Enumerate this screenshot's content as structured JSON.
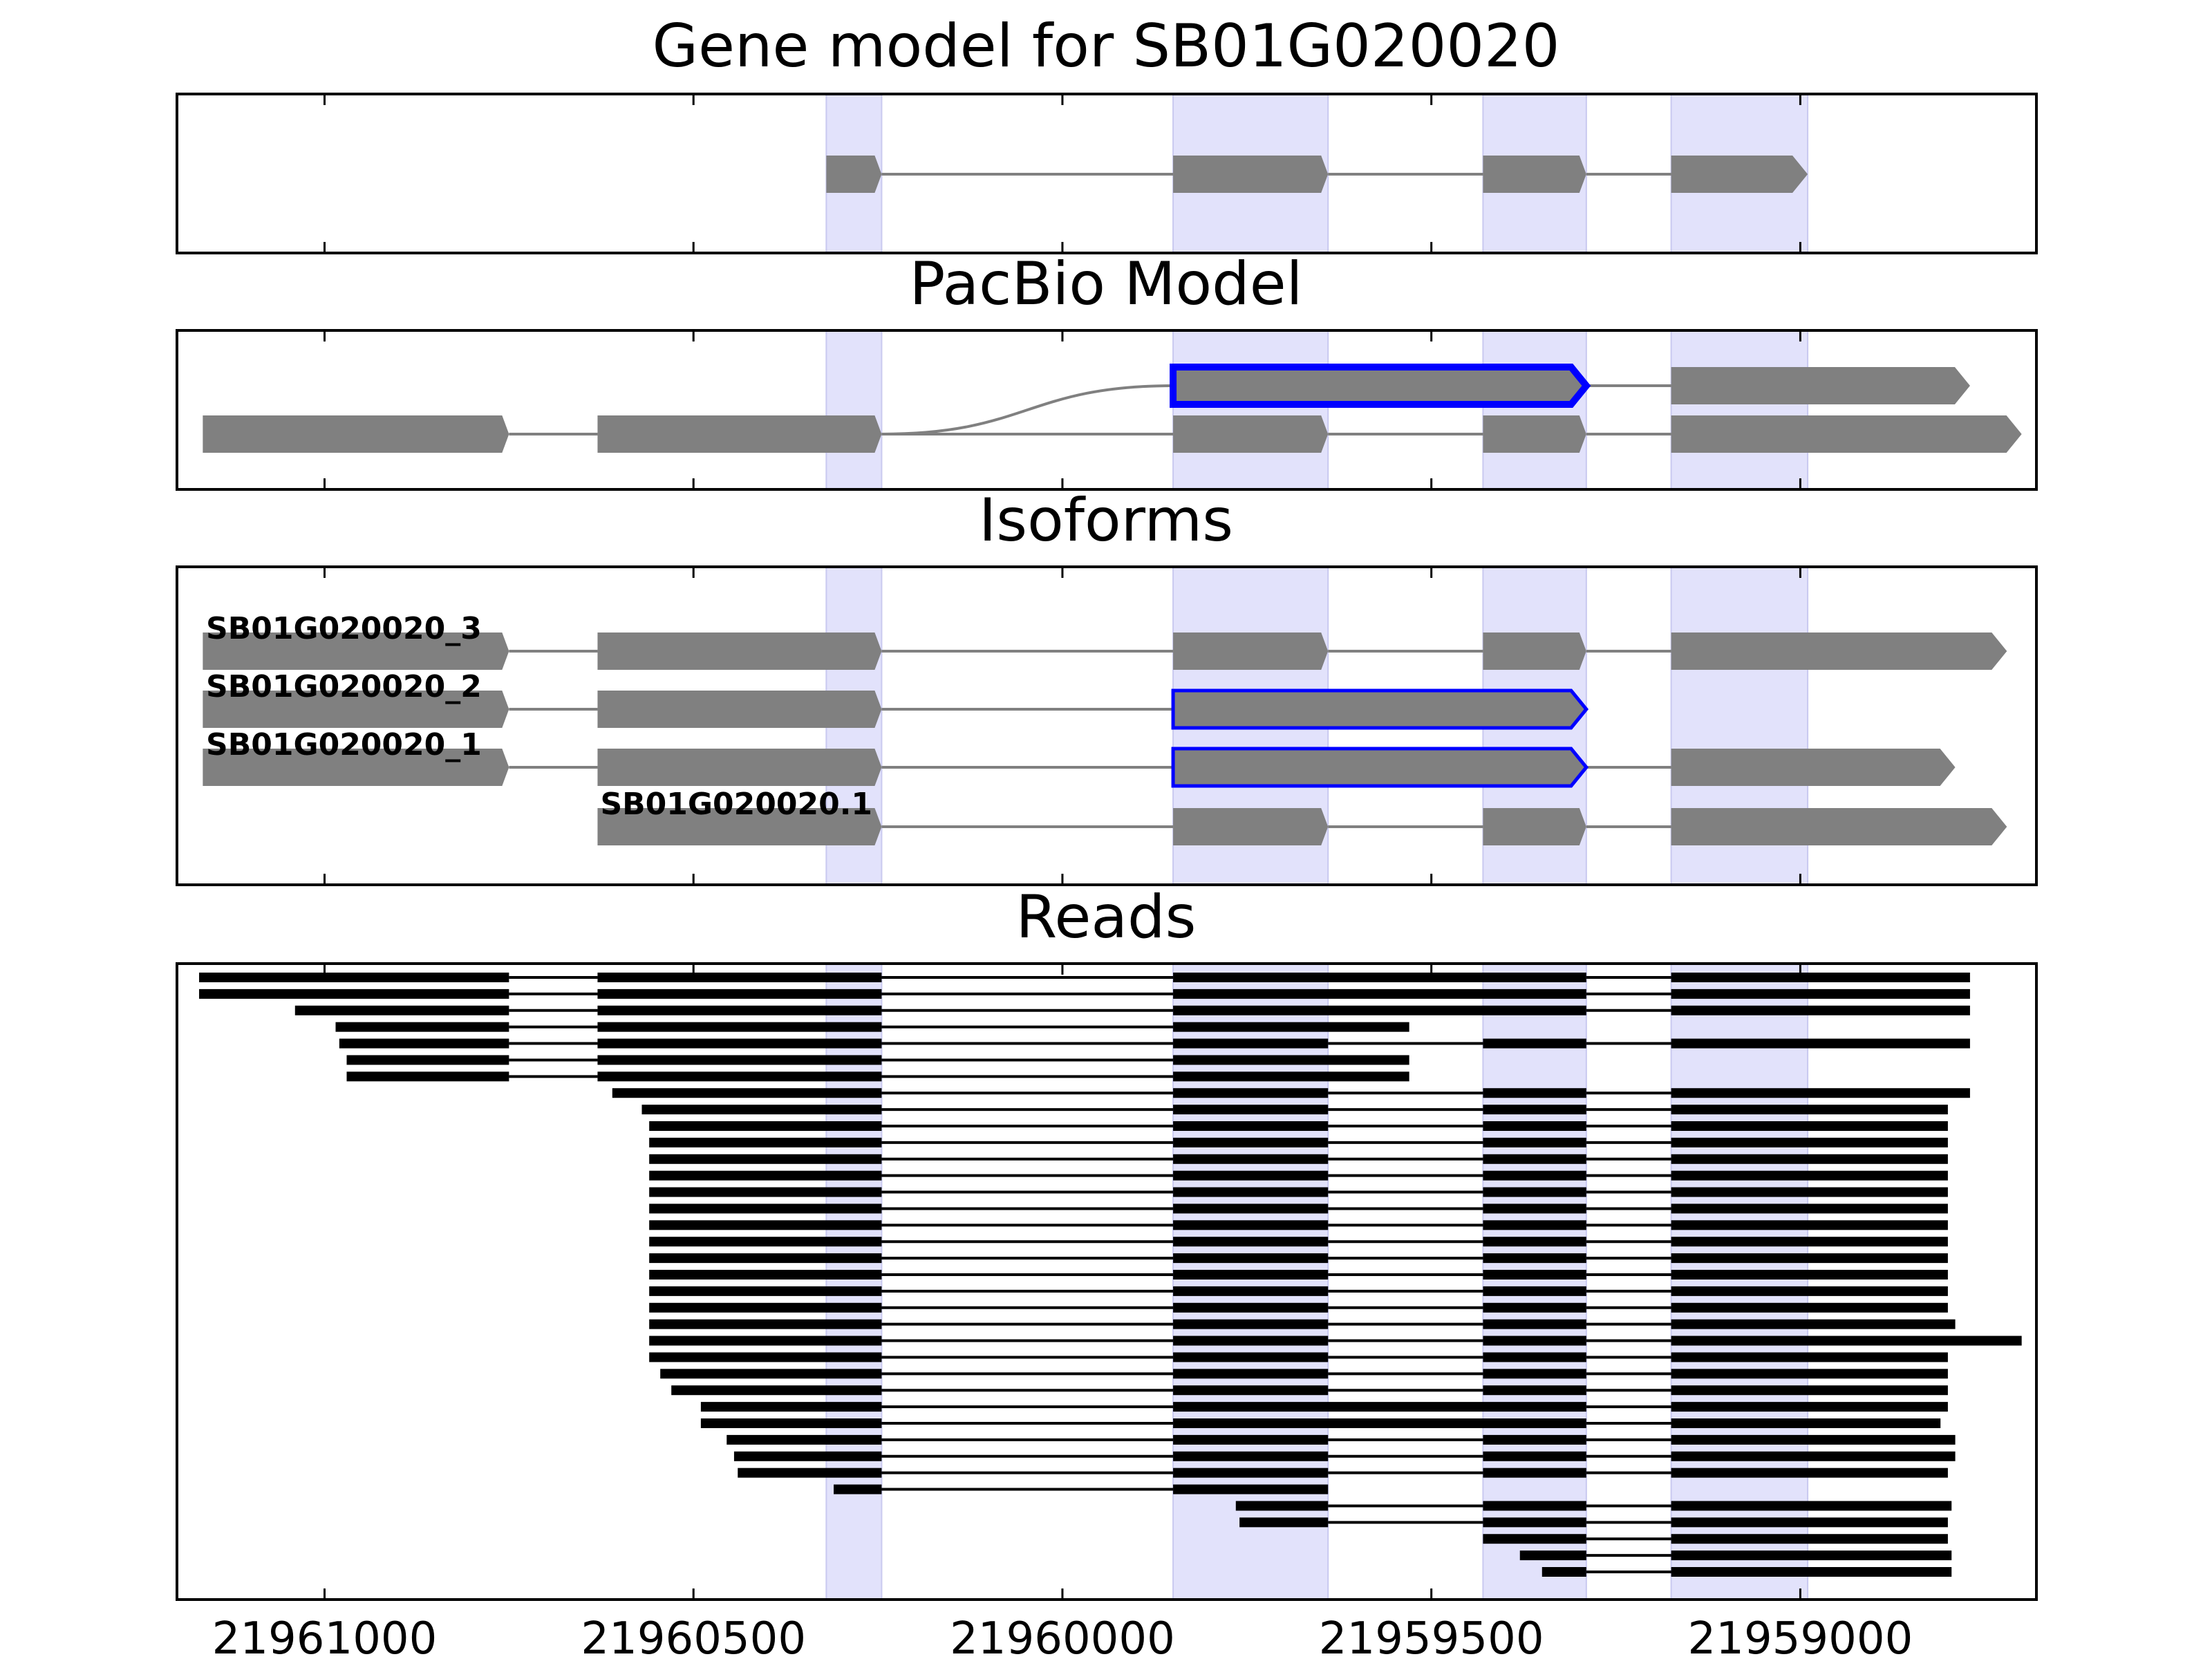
{
  "chart_data": [
    {
      "panel": "gene-model",
      "type": "gene-track",
      "title": "Gene model for SB01G020020",
      "xlim": [
        21961200,
        21958680
      ],
      "exons": [
        [
          21960320,
          21960245
        ],
        [
          21959850,
          21959640
        ],
        [
          21959430,
          21959290
        ],
        [
          21959175,
          21958990
        ]
      ],
      "tracks": [
        {
          "exons": [
            [
              21960320,
              21960245
            ],
            [
              21959850,
              21959640
            ],
            [
              21959430,
              21959290
            ],
            [
              21959175,
              21958990
            ]
          ],
          "highlight": []
        }
      ]
    },
    {
      "panel": "pacbio-model",
      "type": "gene-track",
      "title": "PacBio Model",
      "xlim": [
        21961200,
        21958680
      ],
      "exons": [
        [
          21960320,
          21960245
        ],
        [
          21959850,
          21959640
        ],
        [
          21959430,
          21959290
        ],
        [
          21959175,
          21958990
        ]
      ],
      "tracks": [
        {
          "exons": [
            [
              21959850,
              21959290
            ],
            [
              21959175,
              21958770
            ]
          ],
          "highlight": [
            0
          ],
          "from_y": 1,
          "from_x": 21960245
        },
        {
          "exons": [
            [
              21961165,
              21960750
            ],
            [
              21960630,
              21960245
            ],
            [
              21959850,
              21959640
            ],
            [
              21959430,
              21959290
            ],
            [
              21959175,
              21958700
            ]
          ],
          "highlight": []
        }
      ]
    },
    {
      "panel": "isoforms",
      "type": "gene-track",
      "title": "Isoforms",
      "xlim": [
        21961200,
        21958680
      ],
      "exons": [
        [
          21960320,
          21960245
        ],
        [
          21959850,
          21959640
        ],
        [
          21959430,
          21959290
        ],
        [
          21959175,
          21958990
        ]
      ],
      "tracks": [
        {
          "label": "SB01G020020_3",
          "exons": [
            [
              21961165,
              21960750
            ],
            [
              21960630,
              21960245
            ],
            [
              21959850,
              21959640
            ],
            [
              21959430,
              21959290
            ],
            [
              21959175,
              21958720
            ]
          ],
          "highlight": []
        },
        {
          "label": "SB01G020020_2",
          "exons": [
            [
              21961165,
              21960750
            ],
            [
              21960630,
              21960245
            ],
            [
              21959850,
              21959290
            ]
          ],
          "highlight": [
            2
          ]
        },
        {
          "label": "SB01G020020_1",
          "exons": [
            [
              21961165,
              21960750
            ],
            [
              21960630,
              21960245
            ],
            [
              21959850,
              21959290
            ],
            [
              21959175,
              21958790
            ]
          ],
          "highlight": [
            2
          ]
        },
        {
          "label": "SB01G020020.1",
          "exons": [
            [
              21960630,
              21960245
            ],
            [
              21959850,
              21959640
            ],
            [
              21959430,
              21959290
            ],
            [
              21959175,
              21958720
            ]
          ],
          "highlight": []
        }
      ]
    },
    {
      "panel": "reads",
      "type": "read-alignment",
      "title": "Reads",
      "xlim": [
        21961200,
        21958680
      ],
      "xticks": [
        "21961000",
        "21960500",
        "21960000",
        "21959500",
        "21959000"
      ],
      "xtick_values": [
        21961000,
        21960500,
        21960000,
        21959500,
        21959000
      ],
      "exons": [
        [
          21960320,
          21960245
        ],
        [
          21959850,
          21959640
        ],
        [
          21959430,
          21959290
        ],
        [
          21959175,
          21958990
        ]
      ],
      "reads": [
        {
          "start": 21961170,
          "end": 21958770,
          "exons": [
            [
              21961170,
              21960750
            ],
            [
              21960630,
              21960245
            ],
            [
              21959850,
              21959290
            ],
            [
              21959175,
              21958770
            ]
          ]
        },
        {
          "start": 21961170,
          "end": 21958770,
          "exons": [
            [
              21961170,
              21960750
            ],
            [
              21960630,
              21960245
            ],
            [
              21959850,
              21959290
            ],
            [
              21959175,
              21958770
            ]
          ]
        },
        {
          "start": 21961040,
          "end": 21958770,
          "exons": [
            [
              21961040,
              21960750
            ],
            [
              21960630,
              21960245
            ],
            [
              21959850,
              21959290
            ],
            [
              21959175,
              21958770
            ]
          ]
        },
        {
          "start": 21960985,
          "end": 21959530,
          "exons": [
            [
              21960985,
              21960750
            ],
            [
              21960630,
              21960245
            ],
            [
              21959850,
              21959530
            ]
          ]
        },
        {
          "start": 21960980,
          "end": 21958770,
          "exons": [
            [
              21960980,
              21960750
            ],
            [
              21960630,
              21960245
            ],
            [
              21959850,
              21959640
            ],
            [
              21959430,
              21959290
            ],
            [
              21959175,
              21958770
            ]
          ]
        },
        {
          "start": 21960970,
          "end": 21959530,
          "exons": [
            [
              21960970,
              21960750
            ],
            [
              21960630,
              21960245
            ],
            [
              21959850,
              21959530
            ]
          ]
        },
        {
          "start": 21960970,
          "end": 21959530,
          "exons": [
            [
              21960970,
              21960750
            ],
            [
              21960630,
              21960245
            ],
            [
              21959850,
              21959530
            ]
          ]
        },
        {
          "start": 21960610,
          "end": 21958770,
          "exons": [
            [
              21960610,
              21960245
            ],
            [
              21959850,
              21959640
            ],
            [
              21959430,
              21959290
            ],
            [
              21959175,
              21958770
            ]
          ]
        },
        {
          "start": 21960570,
          "end": 21958800,
          "exons": [
            [
              21960570,
              21960245
            ],
            [
              21959850,
              21959640
            ],
            [
              21959430,
              21959290
            ],
            [
              21959175,
              21958800
            ]
          ]
        },
        {
          "start": 21960560,
          "end": 21958800,
          "exons": [
            [
              21960560,
              21960245
            ],
            [
              21959850,
              21959640
            ],
            [
              21959430,
              21959290
            ],
            [
              21959175,
              21958800
            ]
          ]
        },
        {
          "start": 21960560,
          "end": 21958800,
          "exons": [
            [
              21960560,
              21960245
            ],
            [
              21959850,
              21959640
            ],
            [
              21959430,
              21959290
            ],
            [
              21959175,
              21958800
            ]
          ]
        },
        {
          "start": 21960560,
          "end": 21958800,
          "exons": [
            [
              21960560,
              21960245
            ],
            [
              21959850,
              21959640
            ],
            [
              21959430,
              21959290
            ],
            [
              21959175,
              21958800
            ]
          ]
        },
        {
          "start": 21960560,
          "end": 21958800,
          "exons": [
            [
              21960560,
              21960245
            ],
            [
              21959850,
              21959640
            ],
            [
              21959430,
              21959290
            ],
            [
              21959175,
              21958800
            ]
          ]
        },
        {
          "start": 21960560,
          "end": 21958800,
          "exons": [
            [
              21960560,
              21960245
            ],
            [
              21959850,
              21959640
            ],
            [
              21959430,
              21959290
            ],
            [
              21959175,
              21958800
            ]
          ]
        },
        {
          "start": 21960560,
          "end": 21958800,
          "exons": [
            [
              21960560,
              21960245
            ],
            [
              21959850,
              21959640
            ],
            [
              21959430,
              21959290
            ],
            [
              21959175,
              21958800
            ]
          ]
        },
        {
          "start": 21960560,
          "end": 21958800,
          "exons": [
            [
              21960560,
              21960245
            ],
            [
              21959850,
              21959640
            ],
            [
              21959430,
              21959290
            ],
            [
              21959175,
              21958800
            ]
          ]
        },
        {
          "start": 21960560,
          "end": 21958800,
          "exons": [
            [
              21960560,
              21960245
            ],
            [
              21959850,
              21959640
            ],
            [
              21959430,
              21959290
            ],
            [
              21959175,
              21958800
            ]
          ]
        },
        {
          "start": 21960560,
          "end": 21958800,
          "exons": [
            [
              21960560,
              21960245
            ],
            [
              21959850,
              21959640
            ],
            [
              21959430,
              21959290
            ],
            [
              21959175,
              21958800
            ]
          ]
        },
        {
          "start": 21960560,
          "end": 21958800,
          "exons": [
            [
              21960560,
              21960245
            ],
            [
              21959850,
              21959640
            ],
            [
              21959430,
              21959290
            ],
            [
              21959175,
              21958800
            ]
          ]
        },
        {
          "start": 21960560,
          "end": 21958800,
          "exons": [
            [
              21960560,
              21960245
            ],
            [
              21959850,
              21959640
            ],
            [
              21959430,
              21959290
            ],
            [
              21959175,
              21958800
            ]
          ]
        },
        {
          "start": 21960560,
          "end": 21958800,
          "exons": [
            [
              21960560,
              21960245
            ],
            [
              21959850,
              21959640
            ],
            [
              21959430,
              21959290
            ],
            [
              21959175,
              21958800
            ]
          ]
        },
        {
          "start": 21960560,
          "end": 21958790,
          "exons": [
            [
              21960560,
              21960245
            ],
            [
              21959850,
              21959640
            ],
            [
              21959430,
              21959290
            ],
            [
              21959175,
              21958790
            ]
          ]
        },
        {
          "start": 21960560,
          "end": 21958700,
          "exons": [
            [
              21960560,
              21960245
            ],
            [
              21959850,
              21959640
            ],
            [
              21959430,
              21959290
            ],
            [
              21959175,
              21958700
            ]
          ]
        },
        {
          "start": 21960560,
          "end": 21958800,
          "exons": [
            [
              21960560,
              21960245
            ],
            [
              21959850,
              21959640
            ],
            [
              21959430,
              21959290
            ],
            [
              21959175,
              21958800
            ]
          ]
        },
        {
          "start": 21960545,
          "end": 21958800,
          "exons": [
            [
              21960545,
              21960245
            ],
            [
              21959850,
              21959640
            ],
            [
              21959430,
              21959290
            ],
            [
              21959175,
              21958800
            ]
          ]
        },
        {
          "start": 21960530,
          "end": 21958800,
          "exons": [
            [
              21960530,
              21960245
            ],
            [
              21959850,
              21959640
            ],
            [
              21959430,
              21959290
            ],
            [
              21959175,
              21958800
            ]
          ]
        },
        {
          "start": 21960490,
          "end": 21958800,
          "exons": [
            [
              21960490,
              21960245
            ],
            [
              21959850,
              21959290
            ],
            [
              21959175,
              21958800
            ]
          ]
        },
        {
          "start": 21960490,
          "end": 21958810,
          "exons": [
            [
              21960490,
              21960245
            ],
            [
              21959850,
              21959290
            ],
            [
              21959175,
              21958810
            ]
          ]
        },
        {
          "start": 21960455,
          "end": 21958790,
          "exons": [
            [
              21960455,
              21960245
            ],
            [
              21959850,
              21959640
            ],
            [
              21959430,
              21959290
            ],
            [
              21959175,
              21958790
            ]
          ]
        },
        {
          "start": 21960445,
          "end": 21958790,
          "exons": [
            [
              21960445,
              21960245
            ],
            [
              21959850,
              21959640
            ],
            [
              21959430,
              21959290
            ],
            [
              21959175,
              21958790
            ]
          ]
        },
        {
          "start": 21960440,
          "end": 21958800,
          "exons": [
            [
              21960440,
              21960245
            ],
            [
              21959850,
              21959640
            ],
            [
              21959430,
              21959290
            ],
            [
              21959175,
              21958800
            ]
          ]
        },
        {
          "start": 21960310,
          "end": 21959640,
          "exons": [
            [
              21960310,
              21960245
            ],
            [
              21959850,
              21959640
            ]
          ]
        },
        {
          "start": 21959765,
          "end": 21958795,
          "exons": [
            [
              21959765,
              21959640
            ],
            [
              21959430,
              21959290
            ],
            [
              21959175,
              21958795
            ]
          ]
        },
        {
          "start": 21959760,
          "end": 21958800,
          "exons": [
            [
              21959760,
              21959640
            ],
            [
              21959430,
              21959290
            ],
            [
              21959175,
              21958800
            ]
          ]
        },
        {
          "start": 21959430,
          "end": 21958800,
          "exons": [
            [
              21959430,
              21959290
            ],
            [
              21959175,
              21958800
            ]
          ]
        },
        {
          "start": 21959380,
          "end": 21958795,
          "exons": [
            [
              21959380,
              21959290
            ],
            [
              21959175,
              21958795
            ]
          ]
        },
        {
          "start": 21959350,
          "end": 21958795,
          "exons": [
            [
              21959350,
              21959290
            ],
            [
              21959175,
              21958795
            ]
          ]
        }
      ]
    }
  ],
  "colors": {
    "exon": "#808080",
    "intron": "#808080",
    "highlight": "#0000ff",
    "shade": "#e2e2fb",
    "read": "#000000",
    "axes": "#000000"
  }
}
